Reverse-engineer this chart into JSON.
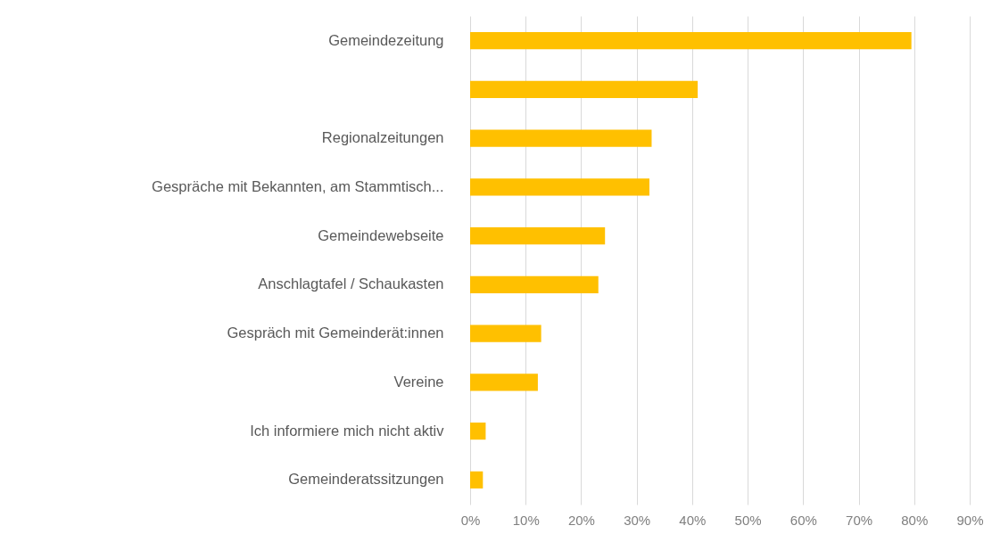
{
  "chart_data": {
    "type": "bar",
    "orientation": "horizontal",
    "categories": [
      "Gemeindezeitung",
      null,
      "Regionalzeitungen",
      "Gespräche mit Bekannten, am Stammtisch...",
      "Gemeindewebseite",
      "Anschlagtafel / Schaukasten",
      "Gespräch mit Gemeinderät:innen",
      "Vereine",
      "Ich informiere mich nicht aktiv",
      "Gemeinderatssitzungen"
    ],
    "values": [
      79.5,
      41.0,
      32.7,
      32.3,
      24.3,
      23.1,
      12.8,
      12.2,
      2.8,
      2.3
    ],
    "color": "#ffc000",
    "xlim": [
      0,
      90
    ],
    "xticks": [
      {
        "value": 0,
        "label": "0%"
      },
      {
        "value": 10,
        "label": "10%"
      },
      {
        "value": 20,
        "label": "20%"
      },
      {
        "value": 30,
        "label": "30%"
      },
      {
        "value": 40,
        "label": "40%"
      },
      {
        "value": 50,
        "label": "50%"
      },
      {
        "value": 60,
        "label": "60%"
      },
      {
        "value": 70,
        "label": "70%"
      },
      {
        "value": 80,
        "label": "80%"
      },
      {
        "value": 90,
        "label": "90%"
      }
    ],
    "grid": "x"
  }
}
